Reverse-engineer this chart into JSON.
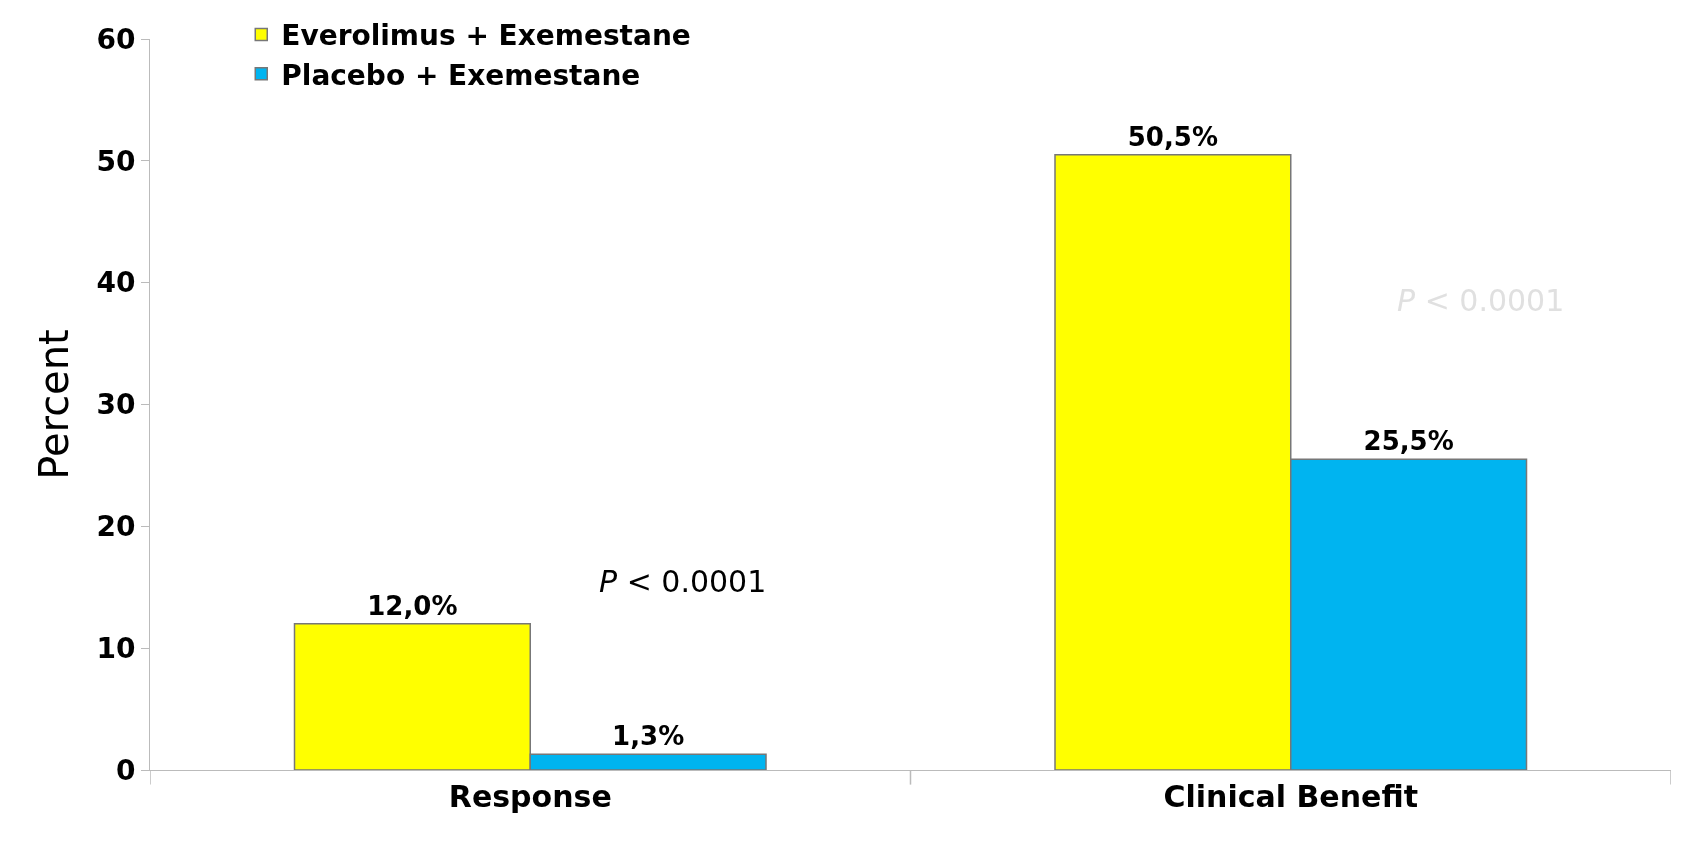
{
  "chart_data": {
    "type": "bar",
    "ylabel": "Percent",
    "categories": [
      "Response",
      "Clinical Benefit"
    ],
    "series": [
      {
        "name": "Everolimus + Exemestane",
        "color": "#ffff00",
        "values": [
          12.0,
          50.5
        ],
        "value_labels": [
          "12,0%",
          "50,5%"
        ]
      },
      {
        "name": "Placebo + Exemestane",
        "color": "#00b4f0",
        "values": [
          1.3,
          25.5
        ],
        "value_labels": [
          "1,3%",
          "25,5%"
        ]
      }
    ],
    "ylim": [
      0,
      60
    ],
    "yticks": [
      0,
      10,
      20,
      30,
      40,
      50,
      60
    ],
    "legend": "top left",
    "annotations": [
      "P < 0.0001",
      "P < 0.0001"
    ]
  }
}
